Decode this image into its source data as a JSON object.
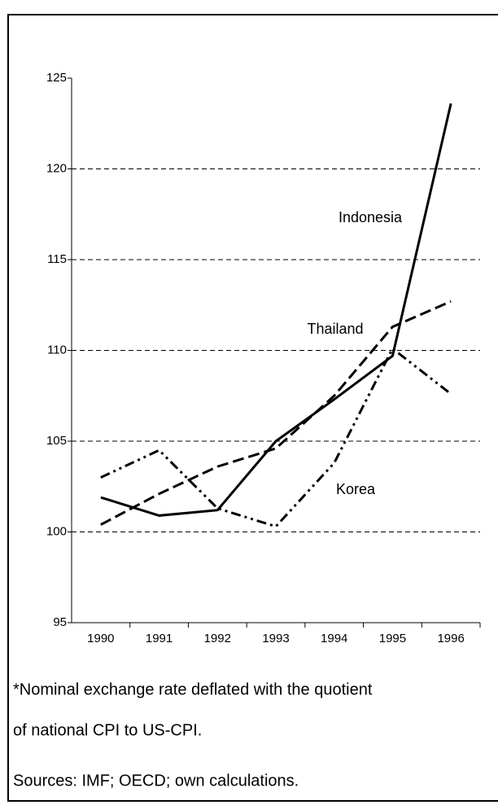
{
  "chart_data": {
    "type": "line",
    "categories": [
      "1990",
      "1991",
      "1992",
      "1993",
      "1994",
      "1995",
      "1996"
    ],
    "series": [
      {
        "name": "Indonesia",
        "color": "#000000",
        "style": "solid",
        "values": [
          101.9,
          100.9,
          101.2,
          105.0,
          107.3,
          109.7,
          123.6
        ]
      },
      {
        "name": "Thailand",
        "color": "#000000",
        "style": "dashed",
        "values": [
          100.4,
          102.1,
          103.6,
          104.6,
          107.5,
          111.3,
          112.7
        ]
      },
      {
        "name": "Korea",
        "color": "#000000",
        "style": "dashdot",
        "values": [
          103.0,
          104.5,
          101.3,
          100.3,
          103.8,
          110.1,
          107.6
        ]
      }
    ],
    "ylim": [
      95,
      125
    ],
    "yticks": [
      95,
      100,
      105,
      110,
      115,
      120,
      125
    ],
    "grid": true,
    "footnotes": [
      "*Nominal exchange rate deflated with the quotient",
      "of national CPI to US-CPI.",
      "Sources: IMF; OECD; own calculations."
    ]
  }
}
